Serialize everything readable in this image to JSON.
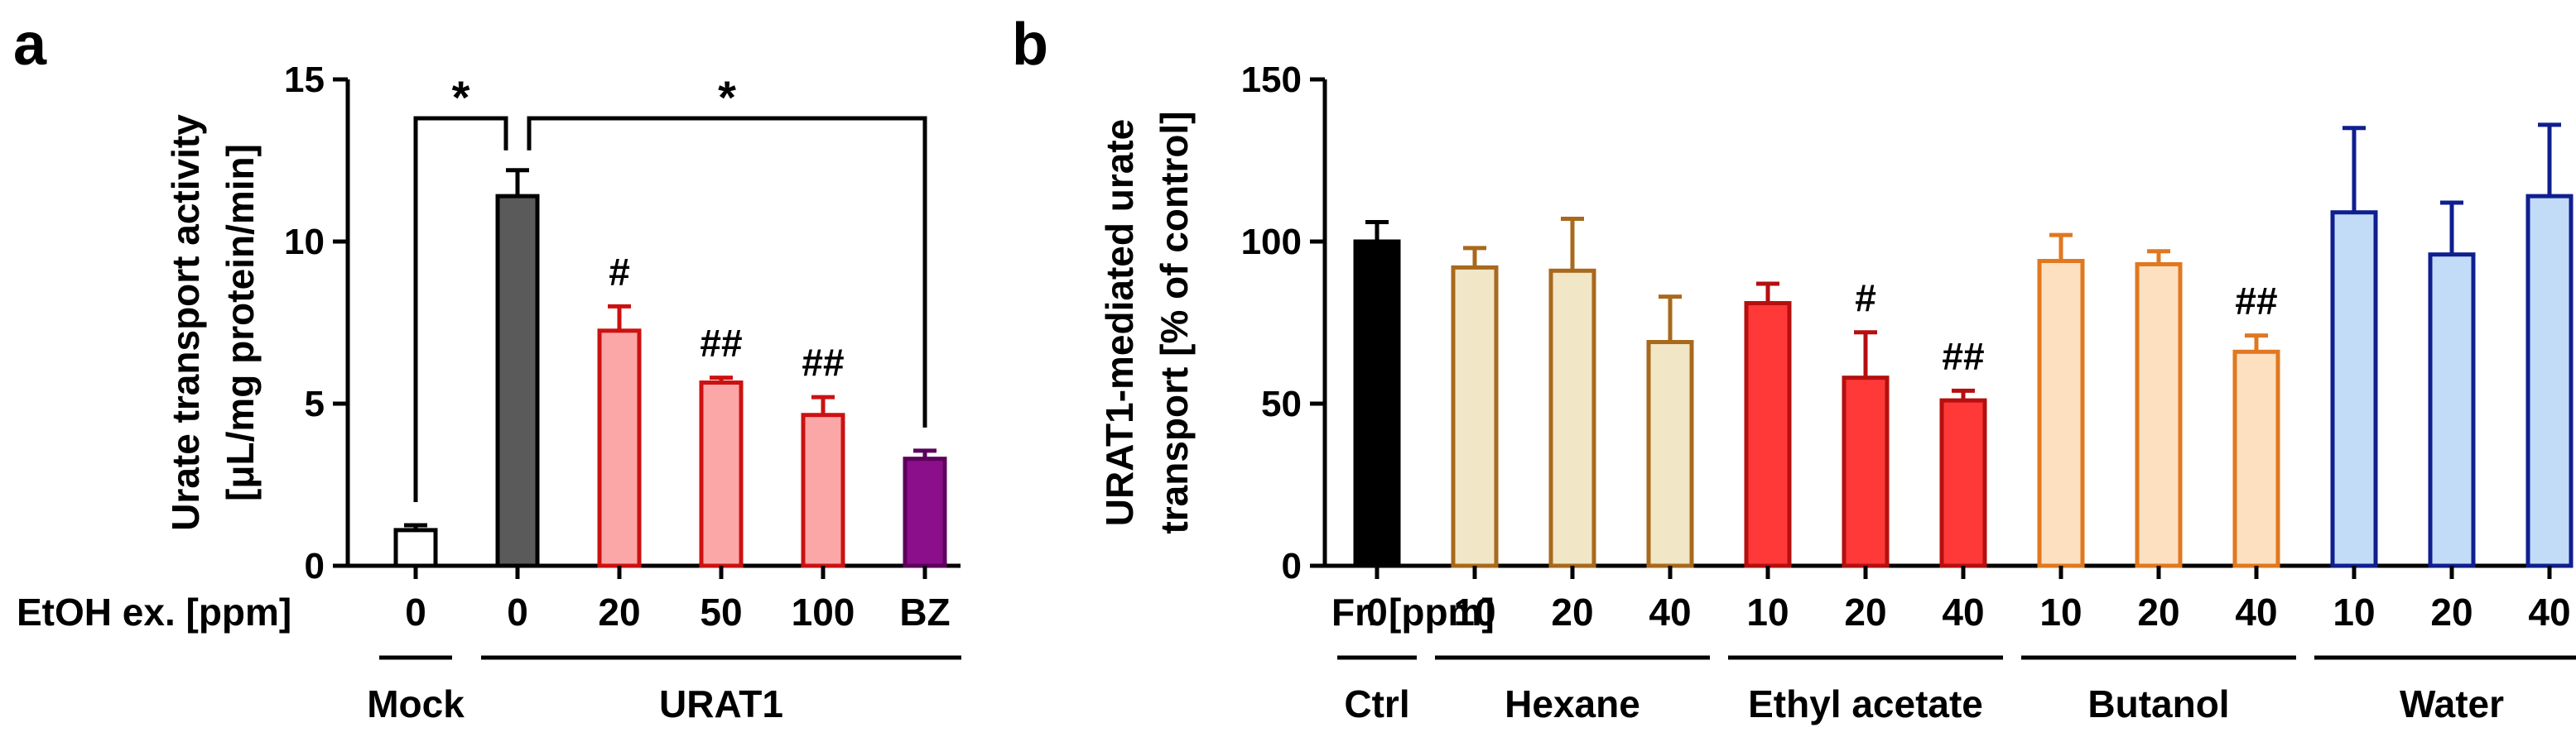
{
  "chart_data": [
    {
      "type": "bar",
      "panel_label": "a",
      "ylabel_lines": [
        "Urate transport activity",
        "[μL/mg protein/min]"
      ],
      "ylim": [
        0,
        15
      ],
      "yticks": [
        0,
        5,
        10,
        15
      ],
      "xlabel": "EtOH ex. [ppm]",
      "categories": [
        "0",
        "0",
        "20",
        "50",
        "100",
        "BZ"
      ],
      "values": [
        1.1,
        11.4,
        7.25,
        5.65,
        4.65,
        3.3
      ],
      "errors": [
        0.15,
        0.8,
        0.75,
        0.15,
        0.55,
        0.25
      ],
      "fill_colors": [
        "#ffffff",
        "#5a5a5a",
        "#fca7a7",
        "#fca7a7",
        "#fca7a7",
        "#8b0f8b"
      ],
      "stroke_colors": [
        "#000000",
        "#000000",
        "#cc1111",
        "#cc1111",
        "#cc1111",
        "#5c005c"
      ],
      "annotations": [
        "",
        "",
        "#",
        "##",
        "##",
        ""
      ],
      "significance": [
        {
          "from": 0,
          "to": 1,
          "label": "*"
        },
        {
          "from": 1,
          "to": 5,
          "label": "*"
        }
      ],
      "groups": [
        {
          "label": "Mock",
          "start": 0,
          "end": 0
        },
        {
          "label": "URAT1",
          "start": 1,
          "end": 5
        }
      ]
    },
    {
      "type": "bar",
      "panel_label": "b",
      "ylabel_lines": [
        "URAT1-mediated urate",
        "transport [% of control]"
      ],
      "ylim": [
        0,
        150
      ],
      "yticks": [
        0,
        50,
        100,
        150
      ],
      "xlabel": "Fr. [ppm]",
      "categories": [
        "0",
        "10",
        "20",
        "40",
        "10",
        "20",
        "40",
        "10",
        "20",
        "40",
        "10",
        "20",
        "40"
      ],
      "values": [
        100,
        92,
        91,
        69,
        81,
        58,
        51,
        94,
        93,
        66,
        109,
        96,
        114
      ],
      "errors": [
        6,
        6,
        16,
        14,
        6,
        14,
        3,
        8,
        4,
        5,
        26,
        16,
        22
      ],
      "fill_colors": [
        "#000000",
        "#f1e6c6",
        "#f1e6c6",
        "#f1e6c6",
        "#ff3838",
        "#ff3838",
        "#ff3838",
        "#fde0c0",
        "#fde0c0",
        "#fde0c0",
        "#c2dcf8",
        "#c2dcf8",
        "#c2dcf8"
      ],
      "stroke_colors": [
        "#000000",
        "#a8691c",
        "#a8691c",
        "#a8691c",
        "#b50f0f",
        "#b50f0f",
        "#b50f0f",
        "#e07820",
        "#e07820",
        "#e07820",
        "#0f1f8f",
        "#0f1f8f",
        "#0f1f8f"
      ],
      "annotations": [
        "",
        "",
        "",
        "",
        "",
        "#",
        "##",
        "",
        "",
        "##",
        "",
        "",
        ""
      ],
      "groups": [
        {
          "label": "Ctrl",
          "start": 0,
          "end": 0
        },
        {
          "label": "Hexane",
          "start": 1,
          "end": 3
        },
        {
          "label": "Ethyl acetate",
          "start": 4,
          "end": 6
        },
        {
          "label": "Butanol",
          "start": 7,
          "end": 9
        },
        {
          "label": "Water",
          "start": 10,
          "end": 12
        }
      ]
    }
  ]
}
